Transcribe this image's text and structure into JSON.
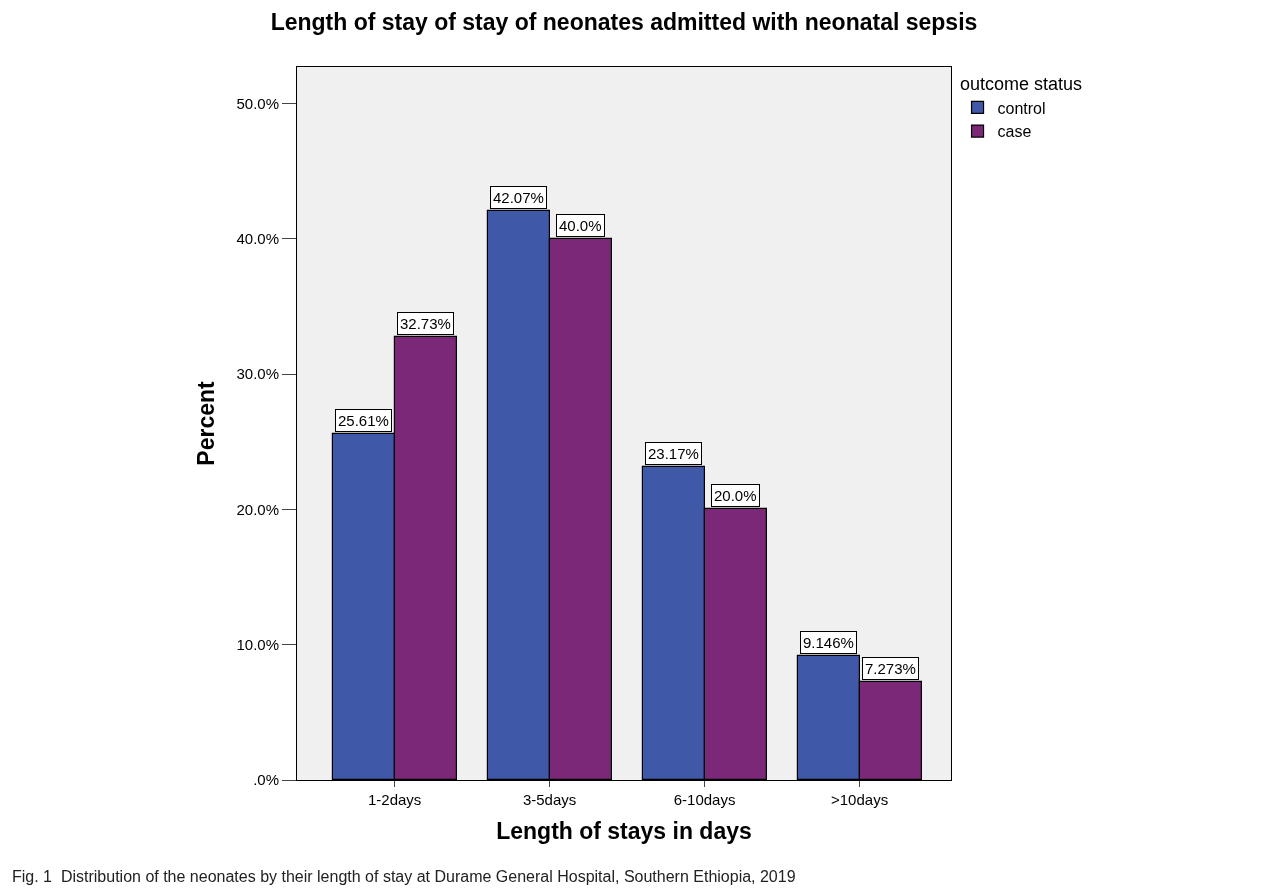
{
  "chart_data": {
    "type": "bar",
    "title": "Length of stay of stay of neonates admitted with neonatal sepsis",
    "xlabel": "Length of stays in days",
    "ylabel": "Percent",
    "legend_title": "outcome status",
    "legend": "top right",
    "categories": [
      "1-2days",
      "3-5days",
      "6-10days",
      ">10days"
    ],
    "series": [
      {
        "name": "control",
        "color": "#3f58a8",
        "values": [
          25.61,
          42.07,
          23.17,
          9.146
        ],
        "value_labels": [
          "25.61%",
          "42.07%",
          "23.17%",
          "9.146%"
        ]
      },
      {
        "name": "case",
        "color": "#7b2879",
        "values": [
          32.73,
          40.0,
          20.0,
          7.273
        ],
        "value_labels": [
          "32.73%",
          "40.0%",
          "20.0%",
          "7.273%"
        ]
      }
    ],
    "ylim": [
      0,
      52.7
    ],
    "yticks": [
      {
        "value": 0,
        "label": ".0%"
      },
      {
        "value": 10,
        "label": "10.0%"
      },
      {
        "value": 20,
        "label": "20.0%"
      },
      {
        "value": 30,
        "label": "30.0%"
      },
      {
        "value": 40,
        "label": "40.0%"
      },
      {
        "value": 50,
        "label": "50.0%"
      }
    ],
    "grid": false,
    "annotations": [
      "Fig. 1  Distribution of the neonates by their length of stay at Durame General Hospital, Southern Ethiopia, 2019"
    ]
  }
}
